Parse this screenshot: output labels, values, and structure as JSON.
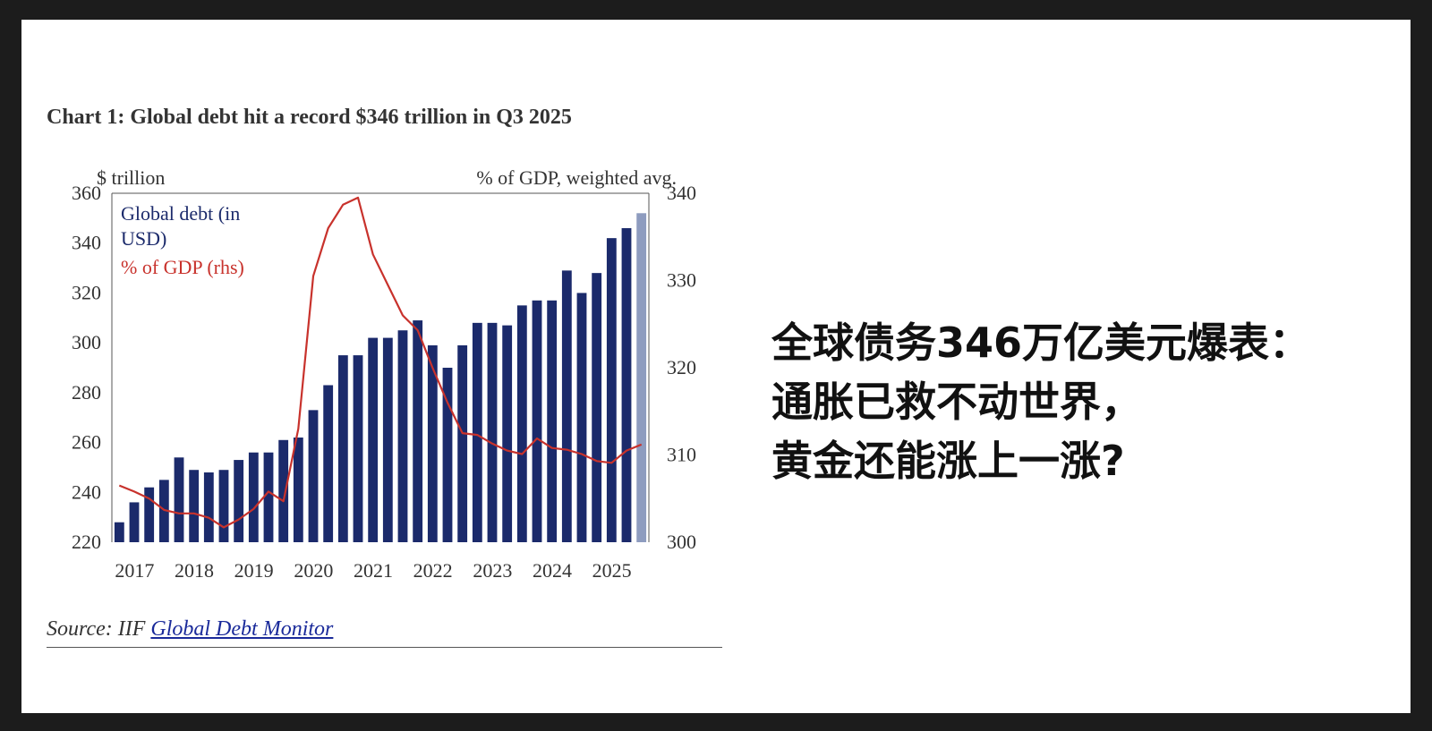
{
  "chart_title": "Chart 1: Global debt hit a record $346 trillion in Q3 2025",
  "source": {
    "prefix": "Source: IIF ",
    "link": "Global Debt Monitor"
  },
  "headline": [
    "全球债务346万亿美元爆表：",
    "通胀已救不动世界，",
    "黄金还能涨上一涨?"
  ],
  "colors": {
    "bars": "#1b2a6b",
    "last_bar": "#8e9cbf",
    "line": "#c8322c"
  },
  "chart_data": {
    "type": "bar",
    "left_axis_label": "$ trillion",
    "right_axis_label": "% of GDP, weighted avg.",
    "legend": [
      "Global debt (in USD)",
      "% of GDP (rhs)"
    ],
    "legend_placement": "top-left",
    "ylim_left": [
      220,
      360
    ],
    "yticks_left": [
      "220",
      "240",
      "260",
      "280",
      "300",
      "320",
      "340",
      "360"
    ],
    "ylim_right": [
      300,
      340
    ],
    "yticks_right": [
      "300",
      "310",
      "320",
      "330",
      "340"
    ],
    "x_tick_labels": [
      "2017",
      "2018",
      "2019",
      "2020",
      "2021",
      "2022",
      "2023",
      "2024",
      "2025"
    ],
    "series": [
      {
        "name": "Global debt (in USD)",
        "type": "bar",
        "quarter_start": "2017 Q1",
        "values": [
          228,
          236,
          242,
          245,
          254,
          249,
          248,
          249,
          253,
          256,
          256,
          261,
          262,
          273,
          283,
          295,
          295,
          302,
          302,
          305,
          309,
          299,
          290,
          299,
          308,
          308,
          307,
          315,
          317,
          317,
          329,
          320,
          328,
          342,
          346,
          352
        ]
      },
      {
        "name": "% of GDP (rhs)",
        "type": "line",
        "axis": "right",
        "values": [
          306.5,
          305.8,
          305,
          303.7,
          303.3,
          303.3,
          302.8,
          301.7,
          302.6,
          303.8,
          305.8,
          304.7,
          313,
          330.5,
          336,
          338.7,
          339.5,
          333,
          329.5,
          326,
          324.3,
          320,
          316,
          312.5,
          312.3,
          311.3,
          310.5,
          310.1,
          311.9,
          310.8,
          310.6,
          310.1,
          309.3,
          309.1,
          310.5,
          311.2
        ]
      }
    ],
    "grid": false
  }
}
